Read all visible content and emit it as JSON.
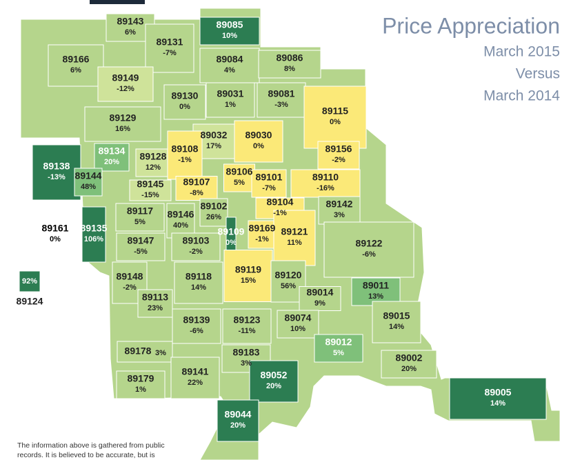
{
  "title": {
    "line1": "Price Appreciation",
    "line2": "March 2015",
    "line3": "Versus",
    "line4": "March 2014"
  },
  "regions": [
    {
      "zip": "89143",
      "change": "6%"
    },
    {
      "zip": "89131",
      "change": "-7%"
    },
    {
      "zip": "89085",
      "change": "10%"
    },
    {
      "zip": "89166",
      "change": "6%"
    },
    {
      "zip": "89084",
      "change": "4%"
    },
    {
      "zip": "89086",
      "change": "8%"
    },
    {
      "zip": "89149",
      "change": "-12%"
    },
    {
      "zip": "89130",
      "change": "0%"
    },
    {
      "zip": "89031",
      "change": "1%"
    },
    {
      "zip": "89081",
      "change": "-3%"
    },
    {
      "zip": "89115",
      "change": "0%"
    },
    {
      "zip": "89129",
      "change": "16%"
    },
    {
      "zip": "89032",
      "change": "17%"
    },
    {
      "zip": "89030",
      "change": "0%"
    },
    {
      "zip": "89156",
      "change": "-2%"
    },
    {
      "zip": "89134",
      "change": "20%"
    },
    {
      "zip": "89128",
      "change": "12%"
    },
    {
      "zip": "89108",
      "change": "-1%"
    },
    {
      "zip": "89138",
      "change": "-13%"
    },
    {
      "zip": "89106",
      "change": "5%"
    },
    {
      "zip": "89101",
      "change": "-7%"
    },
    {
      "zip": "89110",
      "change": "-16%"
    },
    {
      "zip": "89144",
      "change": "48%"
    },
    {
      "zip": "89145",
      "change": "-15%"
    },
    {
      "zip": "89107",
      "change": "-8%"
    },
    {
      "zip": "89104",
      "change": "-1%"
    },
    {
      "zip": "89142",
      "change": "3%"
    },
    {
      "zip": "89161",
      "change": "0%"
    },
    {
      "zip": "89117",
      "change": "5%"
    },
    {
      "zip": "89146",
      "change": "40%"
    },
    {
      "zip": "89102",
      "change": "26%"
    },
    {
      "zip": "89109",
      "change": "0%"
    },
    {
      "zip": "89169",
      "change": "-1%"
    },
    {
      "zip": "89135",
      "change": "106%"
    },
    {
      "zip": "89121",
      "change": "11%"
    },
    {
      "zip": "89122",
      "change": "-6%"
    },
    {
      "zip": "89147",
      "change": "-5%"
    },
    {
      "zip": "89103",
      "change": "-2%"
    },
    {
      "zip": "89124",
      "change": "92%"
    },
    {
      "zip": "89119",
      "change": "15%"
    },
    {
      "zip": "89120",
      "change": "56%"
    },
    {
      "zip": "89148",
      "change": "-2%"
    },
    {
      "zip": "89118",
      "change": "14%"
    },
    {
      "zip": "89113",
      "change": "23%"
    },
    {
      "zip": "89011",
      "change": "13%"
    },
    {
      "zip": "89014",
      "change": "9%"
    },
    {
      "zip": "89015",
      "change": "14%"
    },
    {
      "zip": "89139",
      "change": "-6%"
    },
    {
      "zip": "89123",
      "change": "-11%"
    },
    {
      "zip": "89074",
      "change": "10%"
    },
    {
      "zip": "89012",
      "change": "5%"
    },
    {
      "zip": "89178",
      "change": "3%"
    },
    {
      "zip": "89183",
      "change": "3%"
    },
    {
      "zip": "89002",
      "change": "20%"
    },
    {
      "zip": "89052",
      "change": "20%"
    },
    {
      "zip": "89141",
      "change": "22%"
    },
    {
      "zip": "89179",
      "change": "1%"
    },
    {
      "zip": "89005",
      "change": "14%"
    },
    {
      "zip": "89044",
      "change": "20%"
    }
  ],
  "footnote": {
    "line1": "The information above is gathered from public",
    "line2": "records.  It is believed to be accurate, but is"
  }
}
